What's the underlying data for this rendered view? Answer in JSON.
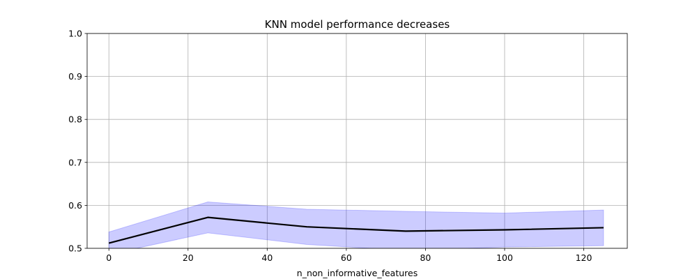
{
  "chart_data": {
    "type": "line",
    "title": "KNN model performance decreases",
    "xlabel": "n_non_informative_features",
    "ylabel": "",
    "xlim": [
      -5.5,
      131
    ],
    "ylim": [
      0.5,
      1.0
    ],
    "xticks": [
      0,
      20,
      40,
      60,
      80,
      100,
      120
    ],
    "xtick_labels": [
      "0",
      "20",
      "40",
      "60",
      "80",
      "100",
      "120"
    ],
    "yticks": [
      0.5,
      0.6,
      0.7,
      0.8,
      0.9,
      1.0
    ],
    "ytick_labels": [
      "0.5",
      "0.6",
      "0.7",
      "0.8",
      "0.9",
      "1.0"
    ],
    "grid": true,
    "legend": "none",
    "series": [
      {
        "x": [
          0,
          25,
          50,
          75,
          100,
          125
        ],
        "y": [
          0.512,
          0.572,
          0.55,
          0.54,
          0.543,
          0.548
        ],
        "lower": [
          0.486,
          0.536,
          0.509,
          0.495,
          0.503,
          0.506
        ],
        "upper": [
          0.538,
          0.608,
          0.591,
          0.586,
          0.582,
          0.589
        ],
        "color": "#000000",
        "band_color": "#0000ff"
      }
    ]
  }
}
